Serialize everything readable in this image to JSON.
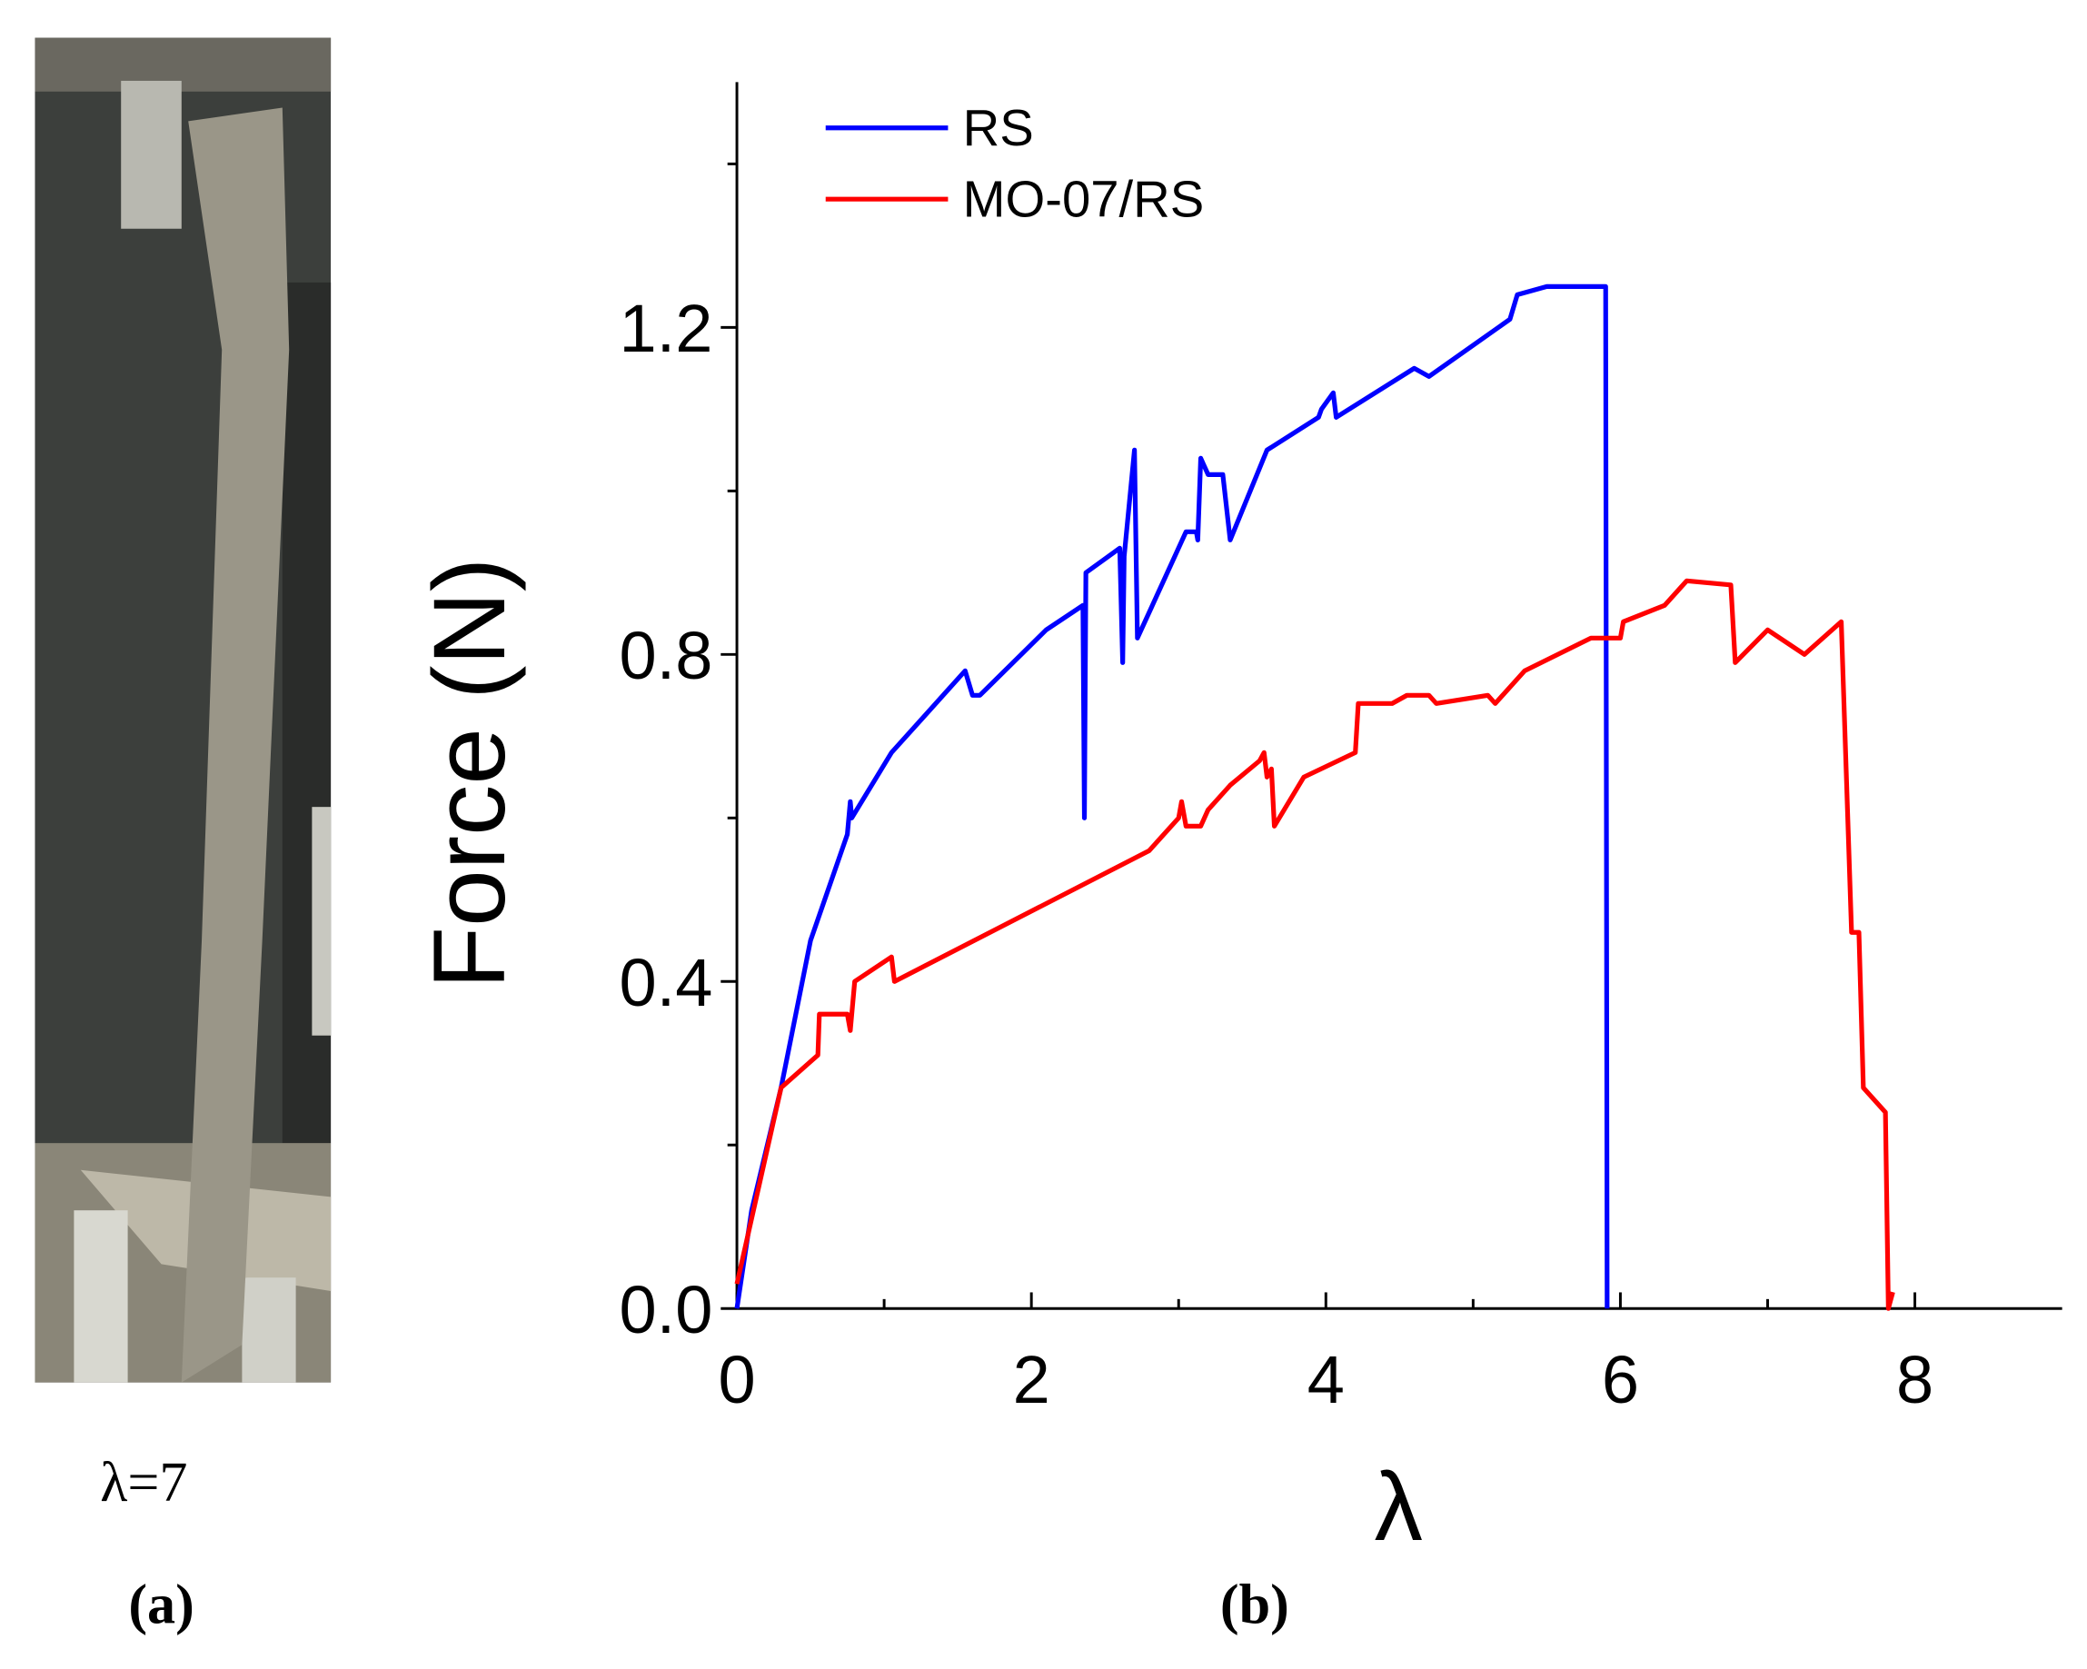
{
  "panel_a": {
    "caption": "λ=7",
    "label": "(a)"
  },
  "panel_b": {
    "label": "(b)"
  },
  "chart_data": {
    "type": "line",
    "xlabel": "λ",
    "ylabel": "Force (N)",
    "xlim": [
      0,
      9
    ],
    "ylim": [
      0,
      1.5
    ],
    "xticks": [
      0,
      2,
      4,
      6,
      8
    ],
    "yticks": [
      {
        "value": 0,
        "label": "0.0"
      },
      0.4,
      0.8,
      1.2
    ],
    "xminorticks": [
      1,
      3,
      5,
      7
    ],
    "yminorticks": [
      0.2,
      0.6,
      1.0,
      1.4
    ],
    "legend": "upper left",
    "series": [
      {
        "name": "RS",
        "color": "#0000ff",
        "x": [
          0,
          0.1,
          0.3,
          0.5,
          0.75,
          0.77,
          0.78,
          1.05,
          1.55,
          1.6,
          1.65,
          2.1,
          2.35,
          2.36,
          2.37,
          2.6,
          2.62,
          2.63,
          2.7,
          2.72,
          3.05,
          3.12,
          3.13,
          3.15,
          3.2,
          3.3,
          3.35,
          3.6,
          3.95,
          3.97,
          4.05,
          4.07,
          4.6,
          4.7,
          5.25,
          5.3,
          5.5,
          5.9,
          5.91
        ],
        "values": [
          0,
          0.12,
          0.27,
          0.45,
          0.58,
          0.62,
          0.6,
          0.68,
          0.78,
          0.75,
          0.75,
          0.83,
          0.86,
          0.6,
          0.9,
          0.93,
          0.79,
          0.92,
          1.05,
          0.82,
          0.95,
          0.95,
          0.94,
          1.04,
          1.02,
          1.02,
          0.94,
          1.05,
          1.09,
          1.1,
          1.12,
          1.09,
          1.15,
          1.14,
          1.21,
          1.24,
          1.25,
          1.25,
          0
        ]
      },
      {
        "name": "MO-07/RS",
        "color": "#ff0000",
        "x": [
          0,
          0.3,
          0.55,
          0.56,
          0.75,
          0.77,
          0.8,
          1.05,
          1.07,
          2.8,
          3.0,
          3.02,
          3.05,
          3.15,
          3.2,
          3.35,
          3.55,
          3.58,
          3.6,
          3.63,
          3.65,
          3.85,
          4.2,
          4.22,
          4.45,
          4.55,
          4.7,
          4.75,
          5.1,
          5.15,
          5.35,
          5.8,
          6.0,
          6.02,
          6.3,
          6.45,
          6.75,
          6.78,
          7.0,
          7.25,
          7.5,
          7.57,
          7.62,
          7.65,
          7.8,
          7.82,
          7.85
        ],
        "values": [
          0.03,
          0.27,
          0.31,
          0.36,
          0.36,
          0.34,
          0.4,
          0.43,
          0.4,
          0.56,
          0.6,
          0.62,
          0.59,
          0.59,
          0.61,
          0.64,
          0.67,
          0.68,
          0.65,
          0.66,
          0.59,
          0.65,
          0.68,
          0.74,
          0.74,
          0.75,
          0.75,
          0.74,
          0.75,
          0.74,
          0.78,
          0.82,
          0.82,
          0.84,
          0.86,
          0.89,
          0.885,
          0.79,
          0.83,
          0.8,
          0.84,
          0.46,
          0.46,
          0.27,
          0.24,
          0,
          0.02
        ]
      }
    ]
  }
}
